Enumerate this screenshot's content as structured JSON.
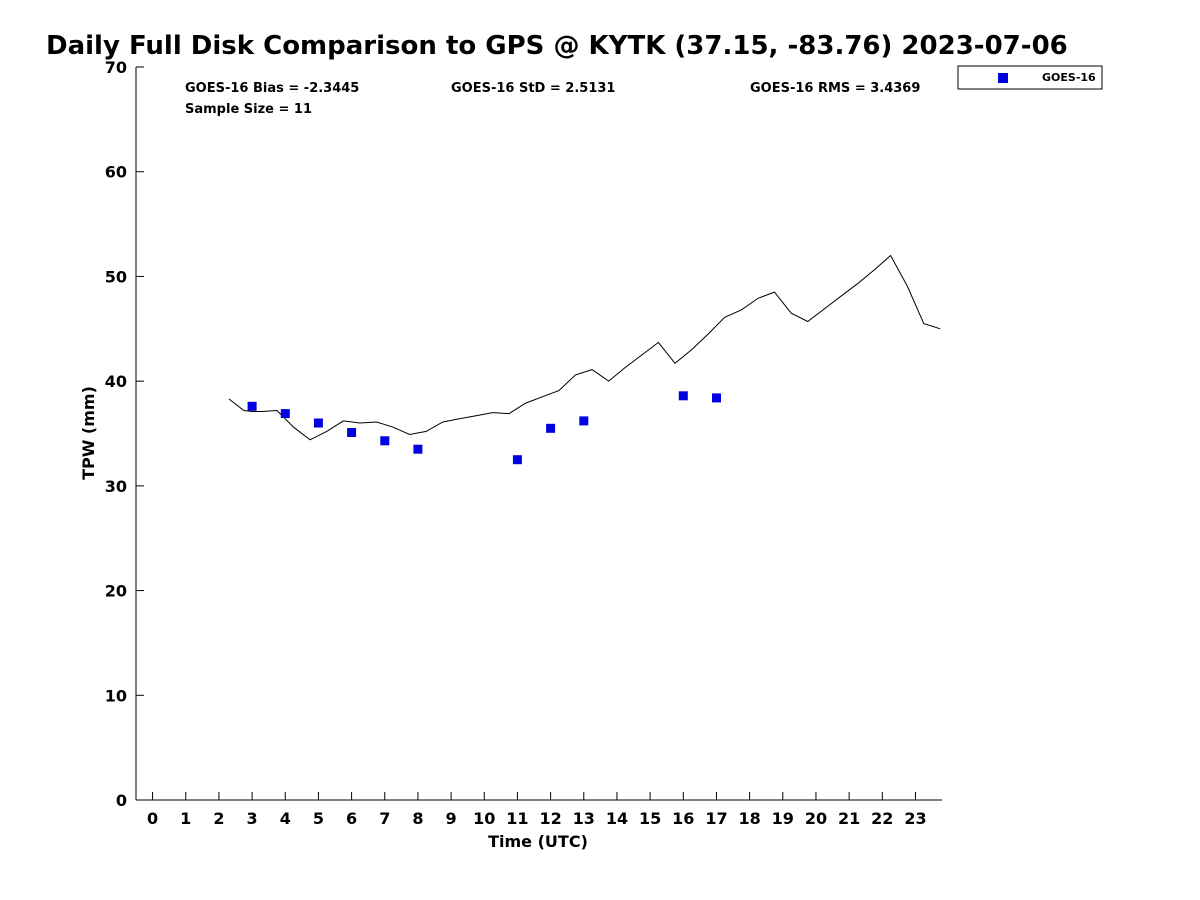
{
  "chart_data": {
    "type": "scatter",
    "title": "Daily Full Disk Comparison to GPS @ KYTK (37.15, -83.76) 2023-07-06",
    "xlabel": "Time (UTC)",
    "ylabel": "TPW (mm)",
    "xlim": [
      -0.5,
      23.8
    ],
    "ylim": [
      0,
      70
    ],
    "x_ticks": [
      0,
      1,
      2,
      3,
      4,
      5,
      6,
      7,
      8,
      9,
      10,
      11,
      12,
      13,
      14,
      15,
      16,
      17,
      18,
      19,
      20,
      21,
      22,
      23
    ],
    "y_ticks": [
      0,
      10,
      20,
      30,
      40,
      50,
      60,
      70
    ],
    "grid": false,
    "legend_position": "top-right",
    "stats": {
      "bias": "GOES-16 Bias = -2.3445",
      "std": "GOES-16 StD = 2.5131",
      "rms": "GOES-16 RMS = 3.4369",
      "sample": "Sample Size = 11"
    },
    "series": [
      {
        "type": "line",
        "color": "#000000",
        "x": [
          2.3,
          2.75,
          3.0,
          3.3,
          3.75,
          4.25,
          4.75,
          5.25,
          5.75,
          6.25,
          6.75,
          7.25,
          7.75,
          8.25,
          8.75,
          9.25,
          9.75,
          10.25,
          10.75,
          11.25,
          11.75,
          12.25,
          12.75,
          13.25,
          13.75,
          14.25,
          14.75,
          15.25,
          15.75,
          16.25,
          16.75,
          17.25,
          17.75,
          18.25,
          18.75,
          19.25,
          19.75,
          20.25,
          20.75,
          21.25,
          21.75,
          22.25,
          22.75,
          23.25,
          23.75
        ],
        "y": [
          38.3,
          37.2,
          37.1,
          37.1,
          37.2,
          35.6,
          34.4,
          35.2,
          36.2,
          36.0,
          36.1,
          35.6,
          34.9,
          35.2,
          36.1,
          36.4,
          36.7,
          37.0,
          36.9,
          37.9,
          38.5,
          39.1,
          40.6,
          41.1,
          40.0,
          41.3,
          42.5,
          43.7,
          41.7,
          43.0,
          44.5,
          46.1,
          46.8,
          47.9,
          48.5,
          46.5,
          45.7,
          46.9,
          48.1,
          49.3,
          50.6,
          52.0,
          49.1,
          45.5,
          45.0
        ]
      },
      {
        "name": "GOES-16",
        "type": "scatter",
        "marker": "square",
        "color": "#0000e0",
        "x": [
          3.0,
          4.0,
          5.0,
          6.0,
          7.0,
          8.0,
          11.0,
          12.0,
          13.0,
          16.0,
          17.0
        ],
        "y": [
          37.6,
          36.9,
          36.0,
          35.1,
          34.3,
          33.5,
          32.5,
          35.5,
          36.2,
          38.6,
          38.4
        ]
      }
    ]
  }
}
